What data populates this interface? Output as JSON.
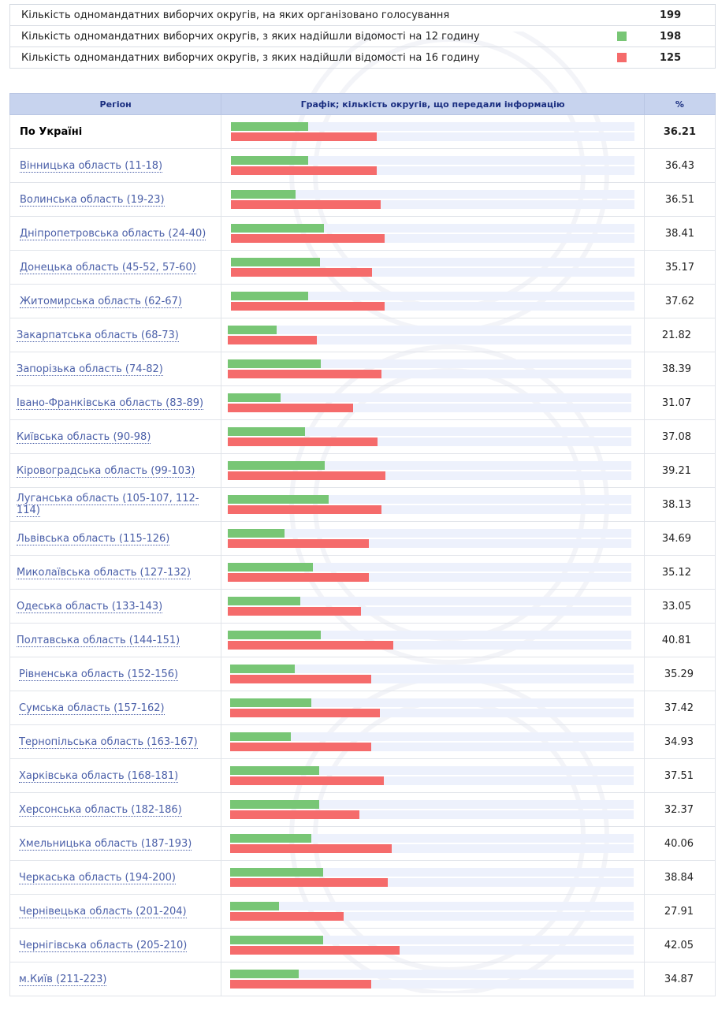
{
  "summary": [
    {
      "label": "Кількість одномандатних виборчих округів, на яких організовано голосування",
      "value": "199",
      "marker": null
    },
    {
      "label": "Кількість одномандатних виборчих округів, з яких надійшли відомості на 12 годину",
      "value": "198",
      "marker": "#78c675"
    },
    {
      "label": "Кількість одномандатних виборчих округів, з яких надійшли відомості на 16 годину",
      "value": "125",
      "marker": "#f56b6b"
    }
  ],
  "table": {
    "headers": {
      "region": "Регіон",
      "chart": "Графік; кількість округів, що передали інформацію",
      "pct": "%"
    },
    "colors": {
      "bar_12": "#78c675",
      "bar_16": "#f56b6b",
      "track": "#edf1fc",
      "header_bg": "#c7d3ee"
    },
    "rows": [
      {
        "region": "По Україні",
        "pct": "36.21",
        "total": true,
        "bar12": 0.19,
        "bar16": 0.36
      },
      {
        "region": "Вінницька область (11-18)",
        "pct": "36.43",
        "bar12": 0.19,
        "bar16": 0.36
      },
      {
        "region": "Волинська область (19-23)",
        "pct": "36.51",
        "bar12": 0.16,
        "bar16": 0.37
      },
      {
        "region": "Дніпропетровська область (24-40)",
        "pct": "38.41",
        "bar12": 0.23,
        "bar16": 0.38
      },
      {
        "region": "Донецька область (45-52, 57-60)",
        "pct": "35.17",
        "bar12": 0.22,
        "bar16": 0.35
      },
      {
        "region": "Житомирська область (62-67)",
        "pct": "37.62",
        "bar12": 0.19,
        "bar16": 0.38
      },
      {
        "region": "Закарпатська область (68-73)",
        "pct": "21.82",
        "bar12": 0.12,
        "bar16": 0.22
      },
      {
        "region": "Запорізька область (74-82)",
        "pct": "38.39",
        "bar12": 0.23,
        "bar16": 0.38
      },
      {
        "region": "Івано-Франківська область (83-89)",
        "pct": "31.07",
        "bar12": 0.13,
        "bar16": 0.31
      },
      {
        "region": "Київська область (90-98)",
        "pct": "37.08",
        "bar12": 0.19,
        "bar16": 0.37
      },
      {
        "region": "Кіровоградська область (99-103)",
        "pct": "39.21",
        "bar12": 0.24,
        "bar16": 0.39
      },
      {
        "region": "Луганська область (105-107, 112-114)",
        "pct": "38.13",
        "bar12": 0.25,
        "bar16": 0.38
      },
      {
        "region": "Львівська область (115-126)",
        "pct": "34.69",
        "bar12": 0.14,
        "bar16": 0.35
      },
      {
        "region": "Миколаївська область (127-132)",
        "pct": "35.12",
        "bar12": 0.21,
        "bar16": 0.35
      },
      {
        "region": "Одеська область (133-143)",
        "pct": "33.05",
        "bar12": 0.18,
        "bar16": 0.33
      },
      {
        "region": "Полтавська область (144-151)",
        "pct": "40.81",
        "bar12": 0.23,
        "bar16": 0.41
      },
      {
        "region": "Рівненська область (152-156)",
        "pct": "35.29",
        "bar12": 0.16,
        "bar16": 0.35
      },
      {
        "region": "Сумська область (157-162)",
        "pct": "37.42",
        "bar12": 0.2,
        "bar16": 0.37
      },
      {
        "region": "Тернопільська область (163-167)",
        "pct": "34.93",
        "bar12": 0.15,
        "bar16": 0.35
      },
      {
        "region": "Харківська область (168-181)",
        "pct": "37.51",
        "bar12": 0.22,
        "bar16": 0.38
      },
      {
        "region": "Херсонська область (182-186)",
        "pct": "32.37",
        "bar12": 0.22,
        "bar16": 0.32
      },
      {
        "region": "Хмельницька область (187-193)",
        "pct": "40.06",
        "bar12": 0.2,
        "bar16": 0.4
      },
      {
        "region": "Черкаська область (194-200)",
        "pct": "38.84",
        "bar12": 0.23,
        "bar16": 0.39
      },
      {
        "region": "Чернівецька область (201-204)",
        "pct": "27.91",
        "bar12": 0.12,
        "bar16": 0.28
      },
      {
        "region": "Чернігівська область (205-210)",
        "pct": "42.05",
        "bar12": 0.23,
        "bar16": 0.42
      },
      {
        "region": "м.Київ (211-223)",
        "pct": "34.87",
        "bar12": 0.17,
        "bar16": 0.35
      }
    ]
  }
}
